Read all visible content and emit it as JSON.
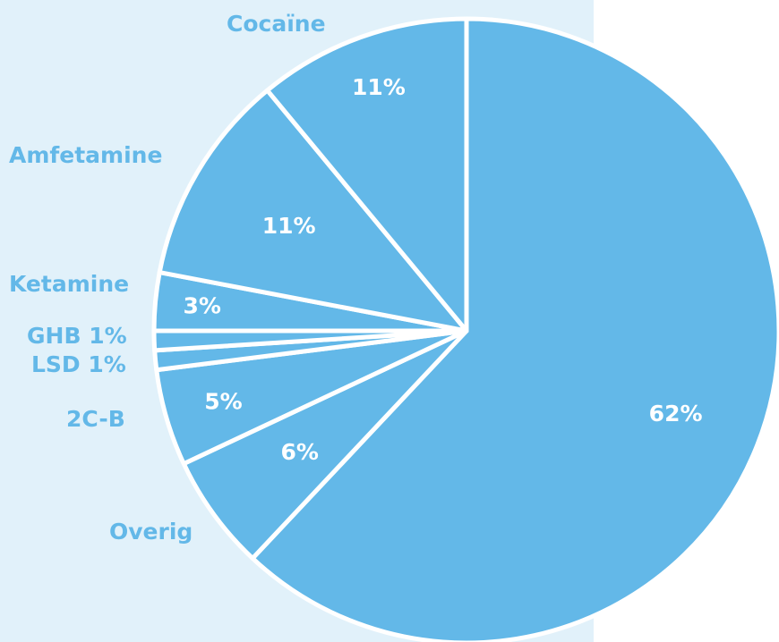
{
  "colors": {
    "slice": "#63b8e8",
    "background_panel": "#e1f1fa",
    "separator": "#ffffff",
    "label": "#63b8e8",
    "percent_label": "#ffffff"
  },
  "chart_data": {
    "type": "pie",
    "title": "",
    "slices": [
      {
        "label": "",
        "value": 62,
        "percent_text": "62%"
      },
      {
        "label": "Overig",
        "value": 6,
        "percent_text": "6%"
      },
      {
        "label": "2C-B",
        "value": 5,
        "percent_text": "5%"
      },
      {
        "label": "LSD 1%",
        "value": 1,
        "percent_text": ""
      },
      {
        "label": "GHB 1%",
        "value": 1,
        "percent_text": ""
      },
      {
        "label": "Ketamine",
        "value": 3,
        "percent_text": "3%"
      },
      {
        "label": "Amfetamine",
        "value": 11,
        "percent_text": "11%"
      },
      {
        "label": "Cocaïne",
        "value": 11,
        "percent_text": "11%"
      }
    ]
  }
}
